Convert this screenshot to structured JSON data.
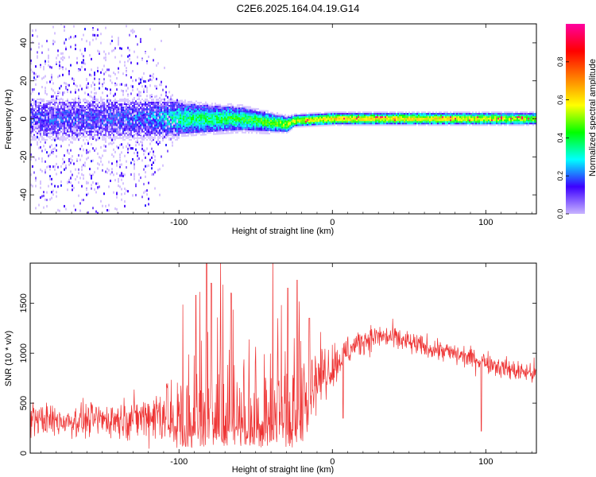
{
  "title": "C2E6.2025.164.04.19.G14",
  "chart_data": [
    {
      "type": "heatmap",
      "title": "",
      "xlabel": "Height of straight line (km)",
      "ylabel": "Frequency (Hz)",
      "xlim": [
        -197,
        133
      ],
      "ylim": [
        -50,
        50
      ],
      "xticks": [
        {
          "v": -100,
          "label": "-100"
        },
        {
          "v": 0,
          "label": "0"
        },
        {
          "v": 100,
          "label": "100"
        }
      ],
      "yticks": [
        {
          "v": -40,
          "label": "-40"
        },
        {
          "v": -20,
          "label": "-20"
        },
        {
          "v": 0,
          "label": "0"
        },
        {
          "v": 20,
          "label": "20"
        },
        {
          "v": 40,
          "label": "40"
        }
      ],
      "colorbar": {
        "label": "Normalized spectral amplitude",
        "range": [
          0,
          1
        ],
        "ticks": [
          {
            "v": 0.0,
            "label": "0.0"
          },
          {
            "v": 0.2,
            "label": "0.2"
          },
          {
            "v": 0.4,
            "label": "0.4"
          },
          {
            "v": 0.6,
            "label": "0.6"
          },
          {
            "v": 0.8,
            "label": "0.8"
          }
        ],
        "colors": [
          "#c8b4ff",
          "#3c00ff",
          "#00ffff",
          "#00ff00",
          "#ffff00",
          "#ff8000",
          "#ff0000",
          "#ff00a0"
        ]
      },
      "ridge": {
        "description_points_x": [
          -197,
          -150,
          -120,
          -100,
          -60,
          -30,
          -25,
          0,
          50,
          100,
          133
        ],
        "center_freq": [
          0,
          0,
          0,
          0,
          0,
          -3,
          -1,
          0,
          0,
          0,
          0
        ],
        "scatter_halfwidth": [
          48,
          48,
          40,
          8,
          6,
          4,
          3,
          3,
          3,
          3,
          3
        ],
        "core_amplitude": [
          0.15,
          0.15,
          0.2,
          0.35,
          0.4,
          0.5,
          0.55,
          0.6,
          0.6,
          0.55,
          0.5
        ]
      },
      "grid": false
    },
    {
      "type": "line",
      "title": "",
      "xlabel": "Height of straight line (km)",
      "ylabel": "SNR (10 * v/v)",
      "xlim": [
        -197,
        133
      ],
      "ylim": [
        0,
        1900
      ],
      "xticks": [
        {
          "v": -100,
          "label": "-100"
        },
        {
          "v": 0,
          "label": "0"
        },
        {
          "v": 100,
          "label": "100"
        }
      ],
      "yticks": [
        {
          "v": 0,
          "label": "0"
        },
        {
          "v": 500,
          "label": "500"
        },
        {
          "v": 1000,
          "label": "1000"
        },
        {
          "v": 1500,
          "label": "1500"
        }
      ],
      "color": "#ee3333",
      "grid": false,
      "series": [
        {
          "x": [
            -197,
            -180,
            -160,
            -140,
            -120,
            -110,
            -105,
            -100,
            -90,
            -80,
            -70,
            -60,
            -50,
            -40,
            -30,
            -20,
            -10,
            0,
            10,
            20,
            30,
            40,
            50,
            60,
            70,
            80,
            90,
            100,
            110,
            120,
            133
          ],
          "values": [
            350,
            320,
            330,
            340,
            370,
            420,
            480,
            560,
            600,
            580,
            560,
            530,
            510,
            500,
            560,
            650,
            750,
            880,
            1020,
            1130,
            1170,
            1150,
            1100,
            1060,
            1030,
            990,
            950,
            920,
            860,
            820,
            800
          ],
          "spread": [
            180,
            180,
            180,
            200,
            260,
            380,
            550,
            700,
            900,
            950,
            850,
            800,
            700,
            700,
            700,
            500,
            350,
            250,
            180,
            150,
            140,
            140,
            130,
            120,
            120,
            120,
            120,
            120,
            120,
            120,
            120
          ],
          "peaks": [
            {
              "x": -82,
              "y": 1900
            },
            {
              "x": -79,
              "y": 1700
            },
            {
              "x": -89,
              "y": 1580
            },
            {
              "x": -66,
              "y": 1600
            },
            {
              "x": -29,
              "y": 1650
            },
            {
              "x": -23,
              "y": 1730
            },
            {
              "x": -15,
              "y": 1350
            },
            {
              "x": 97,
              "y": 220
            },
            {
              "x": 7,
              "y": 350
            }
          ]
        }
      ]
    }
  ]
}
